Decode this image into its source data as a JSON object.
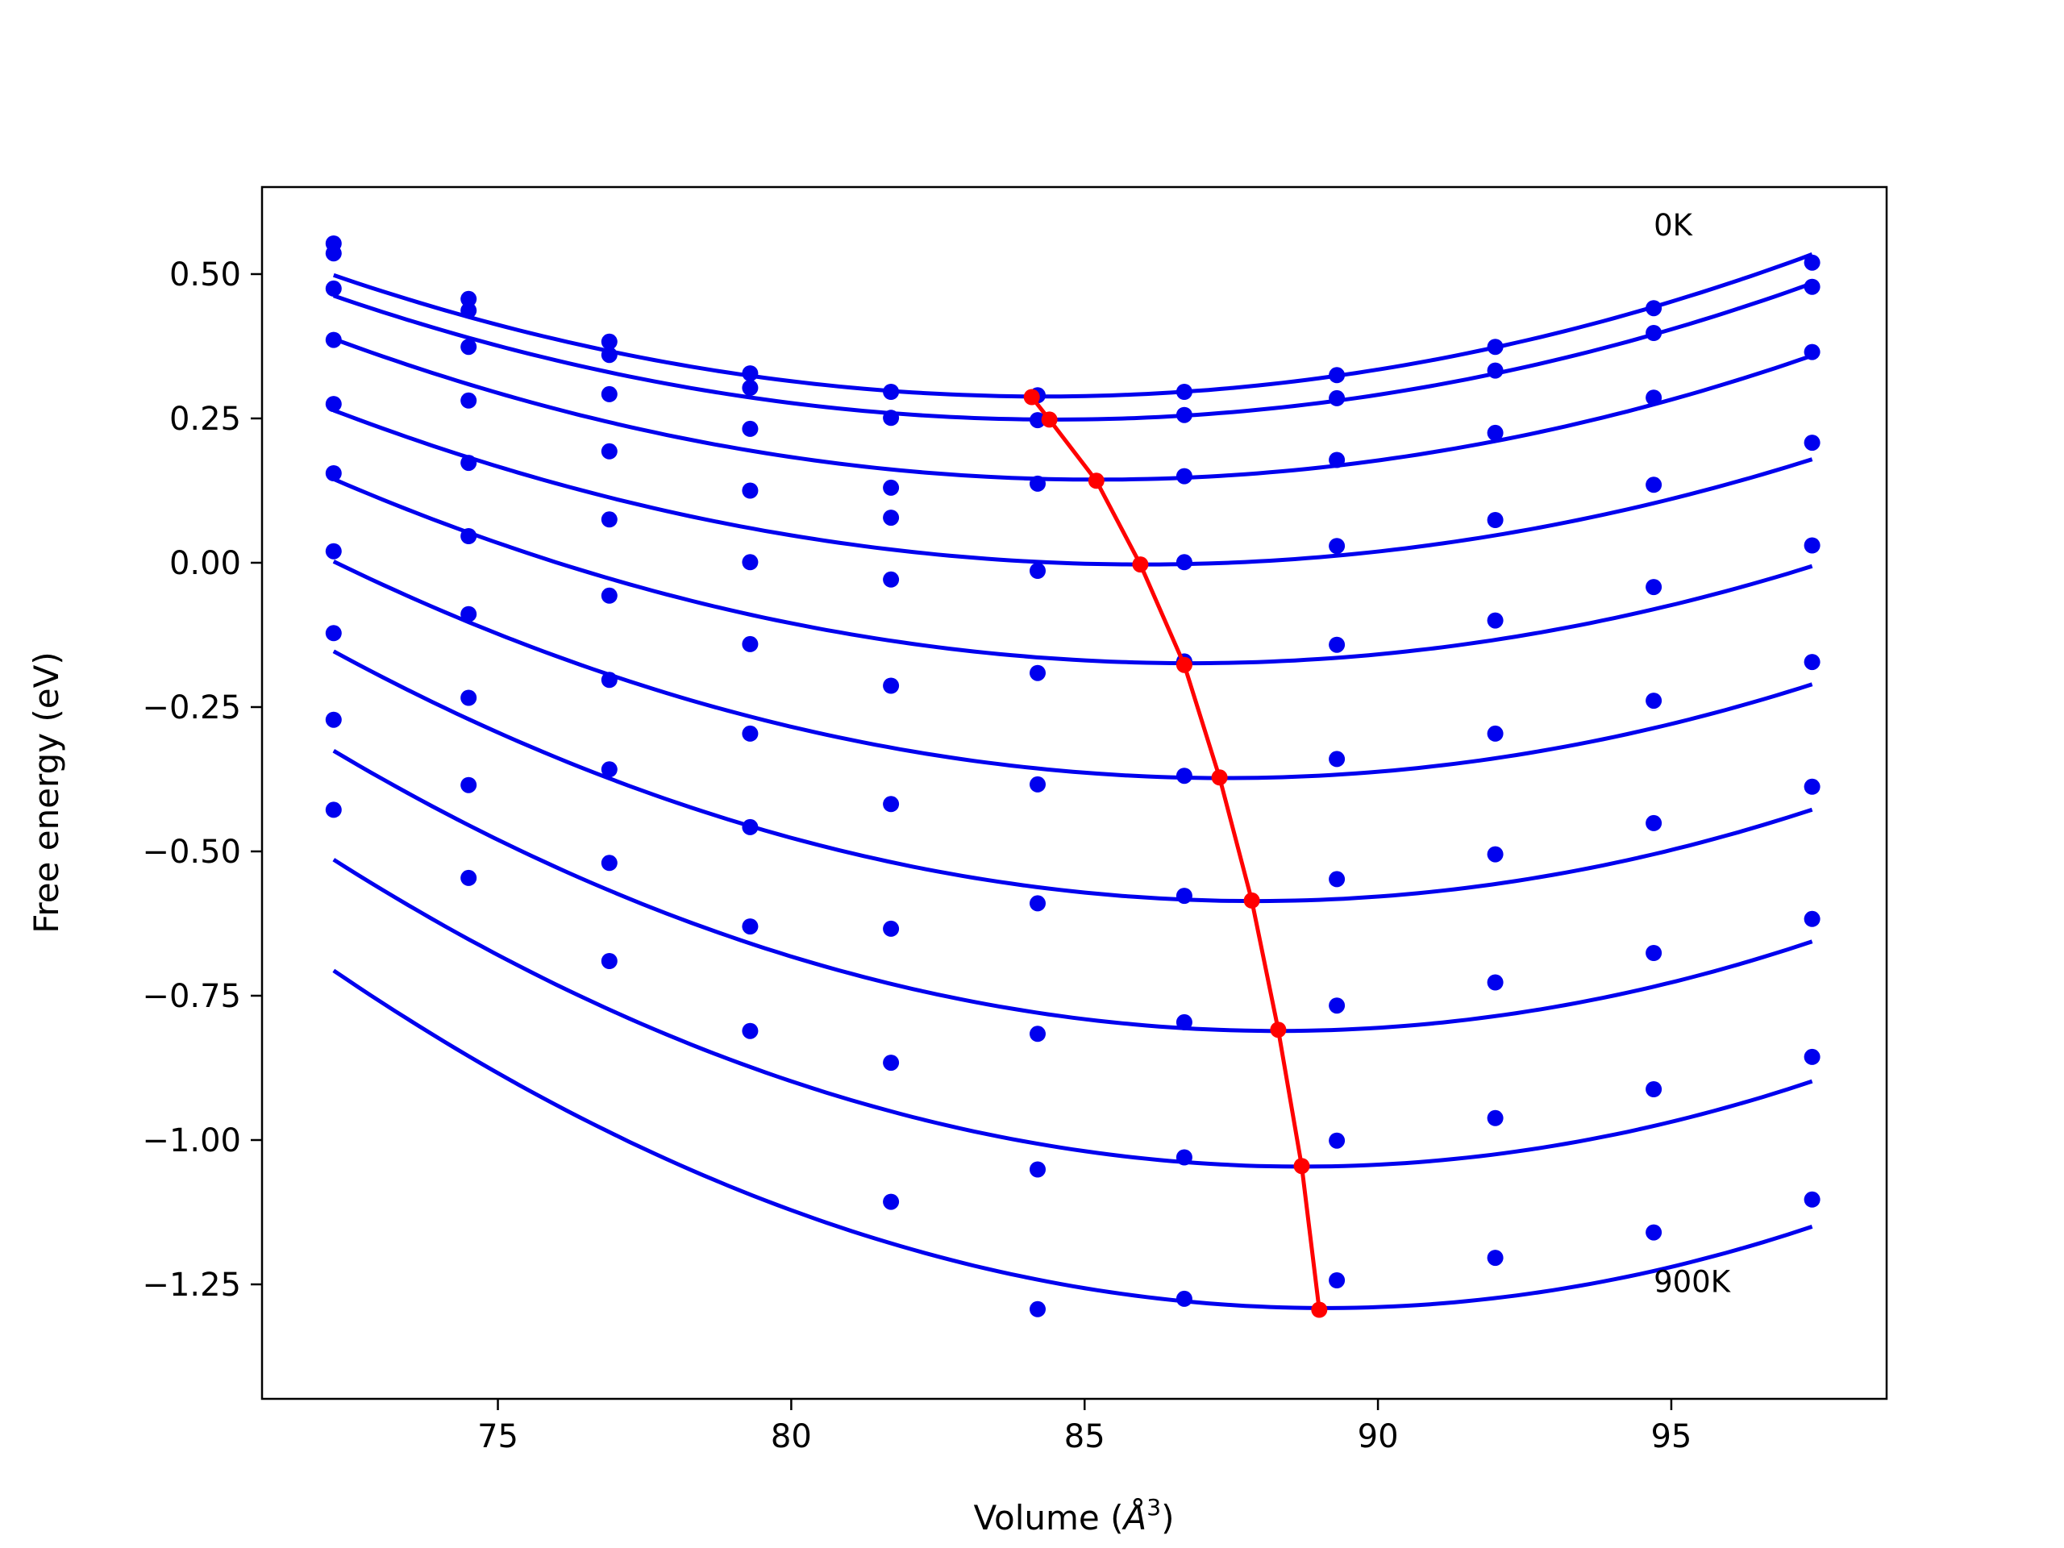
{
  "chart_data": {
    "type": "scatter",
    "title": "",
    "xlabel": "Volume (",
    "xlabel_symbol": "Å",
    "xlabel_exp": "3",
    "xlabel_end": ")",
    "ylabel": "Free energy (eV)",
    "xlim": [
      70.98,
      98.67
    ],
    "ylim": [
      -1.4483,
      0.6508
    ],
    "x_ticks": [
      75,
      80,
      85,
      90,
      95
    ],
    "x_tick_labels": [
      "75",
      "80",
      "85",
      "90",
      "95"
    ],
    "y_ticks": [
      0.5,
      0.25,
      0.0,
      -0.25,
      -0.5,
      -0.75,
      -1.0,
      -1.25
    ],
    "y_tick_labels": [
      "0.50",
      "0.25",
      "0.00",
      "−0.25",
      "−0.50",
      "−0.75",
      "−1.00",
      "−1.25"
    ],
    "grid": false,
    "colors": {
      "points": "#0000ee",
      "fit_curves": "#0000ee",
      "minimum_line": "#ff0000"
    },
    "annotations": [
      {
        "text": "0K",
        "x": 94.7,
        "y": 0.585
      },
      {
        "text": "900K",
        "x": 94.7,
        "y": -1.245
      }
    ],
    "volumes": [
      72.2,
      74.5,
      76.9,
      79.3,
      81.7,
      84.2,
      86.7,
      89.3,
      92.0,
      94.7,
      97.4
    ],
    "series": [
      {
        "fit": {
          "v0": 84.3,
          "e0": 0.288,
          "k": 0.001435
        },
        "values": [
          0.553,
          0.457,
          0.383,
          0.328,
          0.296,
          0.29,
          0.296,
          0.325,
          0.374,
          0.441,
          0.52
        ]
      },
      {
        "fit": {
          "v0": 84.5,
          "e0": 0.248,
          "k": 0.001418
        },
        "values": [
          0.536,
          0.437,
          0.36,
          0.303,
          0.251,
          0.247,
          0.256,
          0.285,
          0.333,
          0.398,
          0.478
        ]
      },
      {
        "fit": {
          "v0": 85.2,
          "e0": 0.144,
          "k": 0.001443
        },
        "values": [
          0.475,
          0.374,
          0.292,
          0.232,
          0.13,
          0.137,
          0.15,
          0.178,
          0.225,
          0.286,
          0.365
        ]
      },
      {
        "fit": {
          "v0": 86.0,
          "e0": -0.003,
          "k": 0.001402
        },
        "values": [
          0.386,
          0.281,
          0.193,
          0.125,
          0.078,
          -0.014,
          0.001,
          0.029,
          0.074,
          0.135,
          0.208
        ]
      },
      {
        "fit": {
          "v0": 86.8,
          "e0": -0.174,
          "k": 0.001496
        },
        "values": [
          0.275,
          0.173,
          0.075,
          0.001,
          -0.029,
          -0.191,
          -0.171,
          -0.142,
          -0.1,
          -0.042,
          0.03
        ]
      },
      {
        "fit": {
          "v0": 87.4,
          "e0": -0.373,
          "k": 0.001624
        },
        "values": [
          0.155,
          0.046,
          -0.057,
          -0.141,
          -0.213,
          -0.384,
          -0.369,
          -0.34,
          -0.296,
          -0.239,
          -0.172
        ]
      },
      {
        "fit": {
          "v0": 87.9,
          "e0": -0.586,
          "k": 0.001755
        },
        "values": [
          0.02,
          -0.089,
          -0.203,
          -0.296,
          -0.418,
          -0.59,
          -0.577,
          -0.548,
          -0.505,
          -0.451,
          -0.388
        ]
      },
      {
        "fit": {
          "v0": 88.3,
          "e0": -0.811,
          "k": 0.001872
        },
        "values": [
          -0.122,
          -0.234,
          -0.358,
          -0.458,
          -0.634,
          -0.816,
          -0.796,
          -0.767,
          -0.727,
          -0.676,
          -0.617
        ]
      },
      {
        "fit": {
          "v0": 88.7,
          "e0": -1.046,
          "k": 0.001953
        },
        "values": [
          -0.272,
          -0.385,
          -0.52,
          -0.63,
          -0.866,
          -1.051,
          -1.03,
          -1.001,
          -0.962,
          -0.912,
          -0.856
        ]
      },
      {
        "fit": {
          "v0": 89.1,
          "e0": -1.291,
          "k": 0.002047
        },
        "values": [
          -0.428,
          -0.546,
          -0.69,
          -0.811,
          -1.107,
          -1.293,
          -1.275,
          -1.243,
          -1.204,
          -1.16,
          -1.103
        ]
      }
    ],
    "minimum_line": {
      "x": [
        84.1,
        84.4,
        85.2,
        85.95,
        86.7,
        87.3,
        87.85,
        88.3,
        88.7,
        89.0
      ],
      "y": [
        0.287,
        0.248,
        0.142,
        -0.003,
        -0.177,
        -0.372,
        -0.585,
        -0.809,
        -1.045,
        -1.294
      ]
    }
  }
}
